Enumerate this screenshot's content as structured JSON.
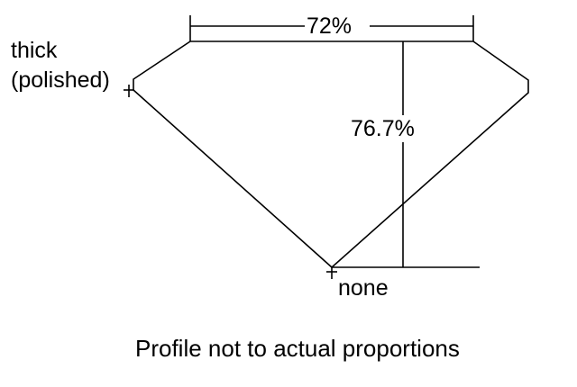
{
  "labels": {
    "table_percent": "72%",
    "depth_percent": "76.7%",
    "girdle_line1": "thick",
    "girdle_line2": "(polished)",
    "culet": "none",
    "caption": "Profile not to actual proportions"
  },
  "colors": {
    "line": "#000000",
    "background": "#ffffff"
  }
}
